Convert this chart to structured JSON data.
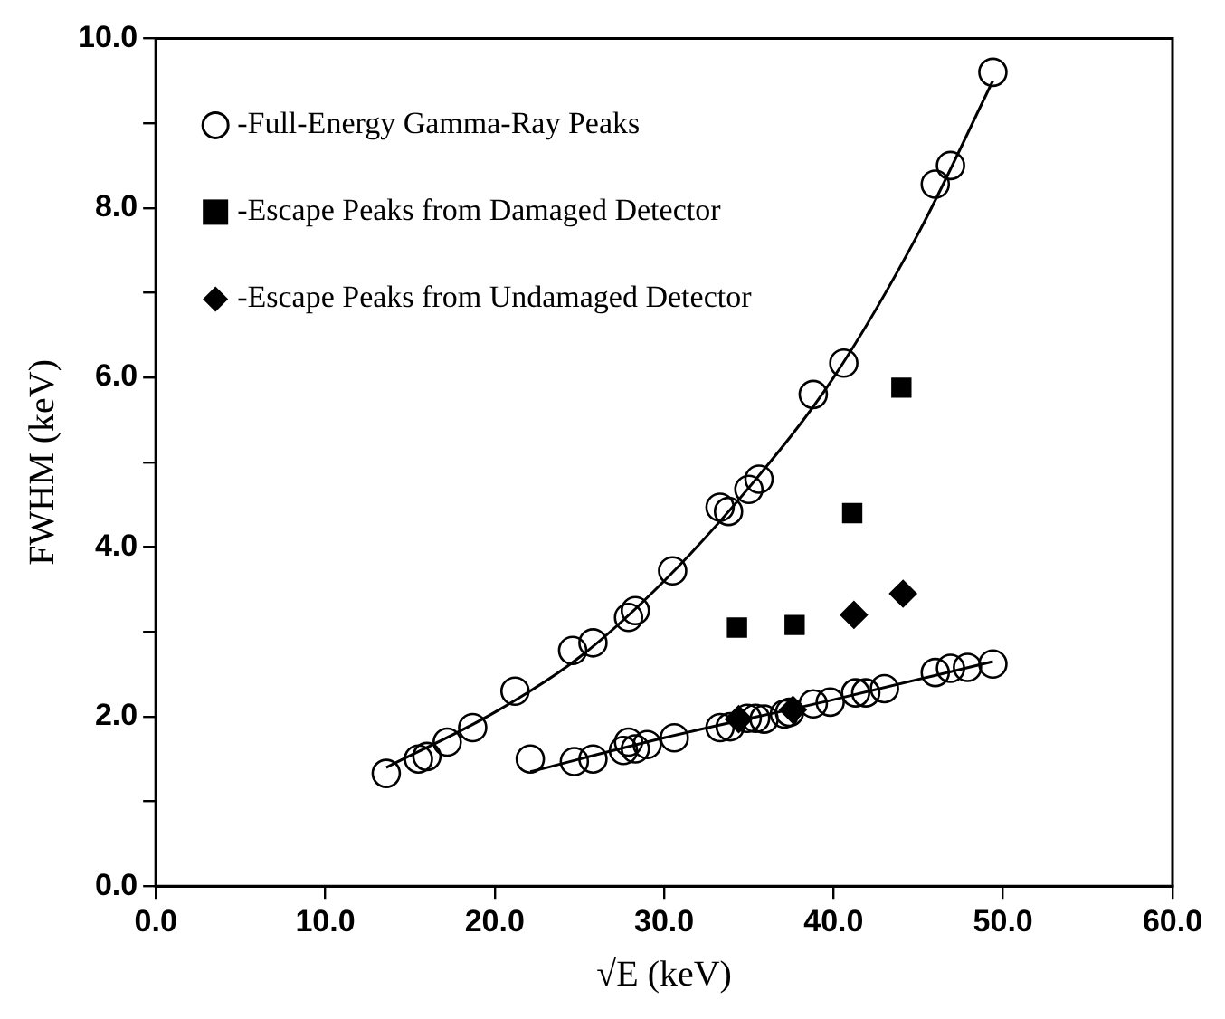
{
  "chart_data": {
    "type": "scatter",
    "xlabel": "√E (keV)",
    "ylabel": "FWHM (keV)",
    "xlim": [
      0,
      60
    ],
    "xticks": [
      {
        "value": 0,
        "label": "0.0"
      },
      {
        "value": 10,
        "label": "10.0"
      },
      {
        "value": 20,
        "label": "20.0"
      },
      {
        "value": 30,
        "label": "30.0"
      },
      {
        "value": 40,
        "label": "40.0"
      },
      {
        "value": 50,
        "label": "50.0"
      },
      {
        "value": 60,
        "label": "60.0"
      }
    ],
    "ylim": [
      0,
      10
    ],
    "yticks": [
      {
        "value": 0,
        "label": "0.0"
      },
      {
        "value": 1,
        "label": null
      },
      {
        "value": 2,
        "label": "2.0"
      },
      {
        "value": 3,
        "label": null
      },
      {
        "value": 4,
        "label": "4.0"
      },
      {
        "value": 5,
        "label": null
      },
      {
        "value": 6,
        "label": "6.0"
      },
      {
        "value": 7,
        "label": null
      },
      {
        "value": 8,
        "label": "8.0"
      },
      {
        "value": 9,
        "label": null
      },
      {
        "value": 10,
        "label": "10.0"
      }
    ],
    "grid": false,
    "legend": "top left",
    "series": [
      {
        "name": "-Full-Energy Gamma-Ray Peaks",
        "marker": "circle",
        "color": "#000000",
        "x": [
          13.6,
          15.5,
          16.0,
          17.2,
          18.7,
          21.2,
          24.6,
          25.8,
          27.9,
          28.3,
          30.5,
          33.3,
          33.8,
          35.0,
          35.6,
          38.8,
          40.6,
          46.0,
          46.9,
          49.4,
          22.1,
          24.7,
          25.8,
          27.6,
          27.9,
          28.3,
          29.0,
          30.6,
          33.3,
          33.9,
          34.9,
          35.4,
          35.9,
          37.1,
          37.4,
          38.8,
          39.8,
          41.3,
          41.9,
          43.0,
          46.0,
          46.9,
          47.9,
          49.4
        ],
        "values": [
          1.33,
          1.5,
          1.53,
          1.7,
          1.87,
          2.3,
          2.78,
          2.87,
          3.17,
          3.25,
          3.72,
          4.47,
          4.42,
          4.68,
          4.8,
          5.8,
          6.17,
          8.28,
          8.5,
          9.6,
          1.5,
          1.47,
          1.5,
          1.6,
          1.7,
          1.62,
          1.67,
          1.75,
          1.87,
          1.88,
          1.98,
          1.98,
          1.97,
          2.03,
          2.05,
          2.15,
          2.17,
          2.28,
          2.28,
          2.33,
          2.52,
          2.57,
          2.58,
          2.62
        ]
      },
      {
        "name": "-Escape Peaks from Damaged Detector",
        "marker": "square",
        "color": "#000000",
        "x": [
          34.3,
          37.7,
          41.1,
          44.0
        ],
        "values": [
          3.05,
          3.08,
          4.4,
          5.88
        ]
      },
      {
        "name": "-Escape Peaks from Undamaged Detector",
        "marker": "diamond",
        "color": "#000000",
        "x": [
          34.4,
          37.6,
          41.2,
          44.1
        ],
        "values": [
          1.97,
          2.08,
          3.2,
          3.45
        ]
      },
      {
        "type": "line",
        "marker": "none",
        "line_style": "solid",
        "color": "#000000",
        "x": [
          13.6,
          20,
          25,
          30,
          35,
          40,
          45,
          49.4
        ],
        "values": [
          1.4,
          2.05,
          2.7,
          3.6,
          4.7,
          6.0,
          7.7,
          9.5
        ]
      },
      {
        "type": "line",
        "marker": "none",
        "line_style": "solid",
        "color": "#000000",
        "x": [
          22.1,
          30,
          40,
          49.4
        ],
        "values": [
          1.35,
          1.75,
          2.2,
          2.65
        ]
      }
    ]
  }
}
